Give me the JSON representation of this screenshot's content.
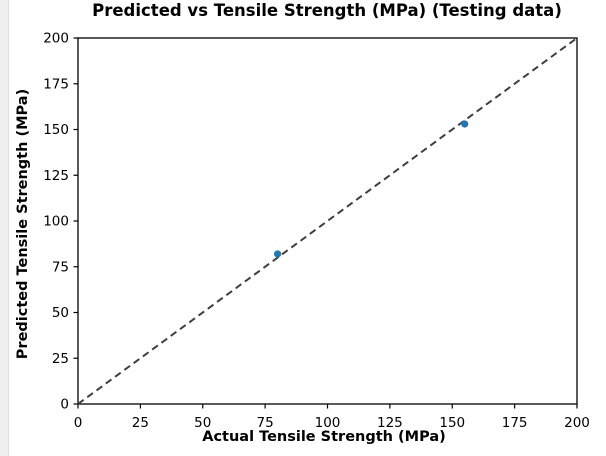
{
  "window": {
    "background": "#ffffff",
    "left_strip_color": "#f0f0f0",
    "left_strip_border": "#dcdcdc"
  },
  "chart_data": {
    "type": "scatter",
    "title": "Predicted vs Tensile Strength (MPa) (Testing data)",
    "xlabel": "Actual Tensile Strength (MPa)",
    "ylabel": "Predicted Tensile Strength (MPa)",
    "xlim": [
      0,
      200
    ],
    "ylim": [
      0,
      200
    ],
    "xticks": [
      0,
      25,
      50,
      75,
      100,
      125,
      150,
      175,
      200
    ],
    "yticks": [
      0,
      25,
      50,
      75,
      100,
      125,
      150,
      175,
      200
    ],
    "grid": false,
    "legend": false,
    "text_color": "#000000",
    "spine_color": "#000000",
    "series": [
      {
        "name": "test-data-predictions",
        "type": "scatter",
        "marker_color": "#1f77b4",
        "points": [
          {
            "actual": 80,
            "predicted": 82
          },
          {
            "actual": 155,
            "predicted": 153
          }
        ]
      }
    ],
    "reference_line": {
      "name": "identity-line",
      "from": [
        0,
        0
      ],
      "to": [
        200,
        200
      ],
      "style": "dashed",
      "color": "#3f3f3f"
    }
  }
}
